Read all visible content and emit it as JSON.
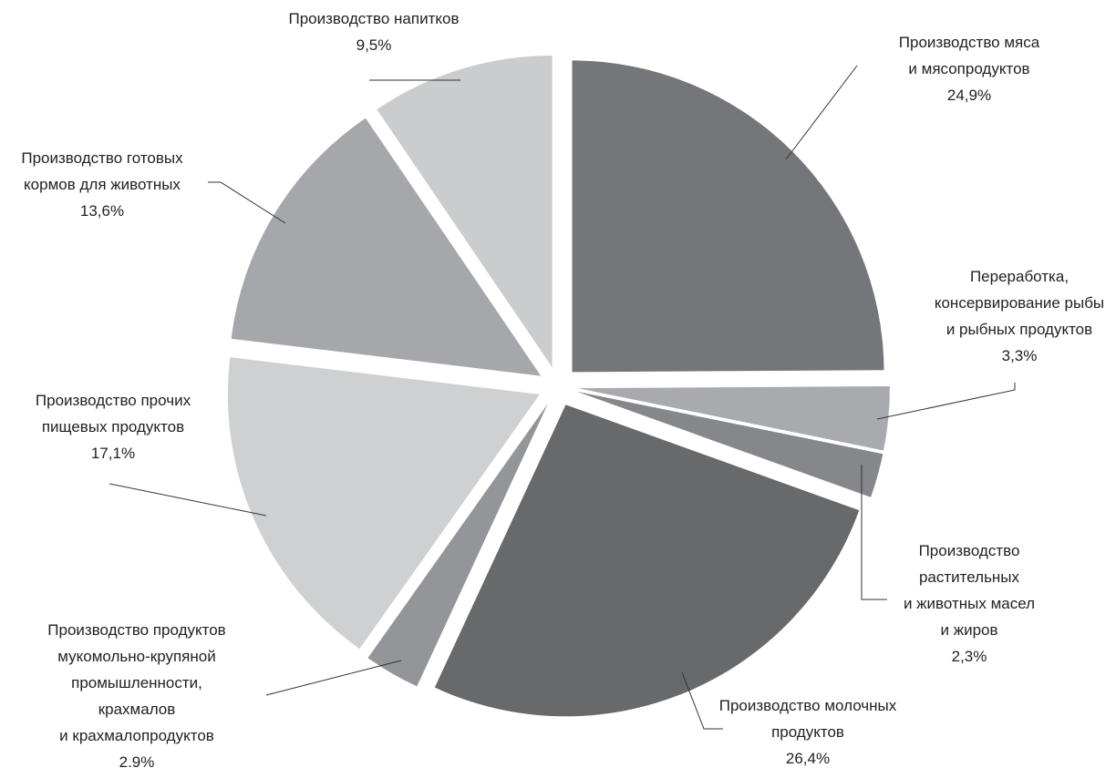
{
  "chart_data": {
    "type": "pie",
    "title": "",
    "slices": [
      {
        "lines": [
          "Производство мяса",
          "и мясопродуктов"
        ],
        "value_label": "24,9%",
        "value": 24.9,
        "color": "#757679"
      },
      {
        "lines": [
          "Переработка,",
          "консервирование рыбы",
          "и рыбных продуктов"
        ],
        "value_label": "3,3%",
        "value": 3.3,
        "color": "#a9aaad"
      },
      {
        "lines": [
          "Производство",
          "растительных",
          "и животных масел",
          "и жиров"
        ],
        "value_label": "2,3%",
        "value": 2.3,
        "color": "#86878a"
      },
      {
        "lines": [
          "Производство молочных",
          "продуктов"
        ],
        "value_label": "26,4%",
        "value": 26.4,
        "color": "#68696b"
      },
      {
        "lines": [
          "Производство продуктов",
          "мукомольно-крупяной",
          "промышленности,",
          "крахмалов",
          "и крахмалопродуктов"
        ],
        "value_label": "2.9%",
        "value": 2.9,
        "color": "#949598"
      },
      {
        "lines": [
          "Производство прочих",
          "пищевых продуктов"
        ],
        "value_label": "17,1%",
        "value": 17.1,
        "color": "#cfd0d2"
      },
      {
        "lines": [
          "Производство готовых",
          "кормов для животных"
        ],
        "value_label": "13,6%",
        "value": 13.6,
        "color": "#a6a7aa"
      },
      {
        "lines": [
          "Производство напитков"
        ],
        "value_label": "9,5%",
        "value": 9.5,
        "color": "#cbcccd"
      }
    ]
  }
}
